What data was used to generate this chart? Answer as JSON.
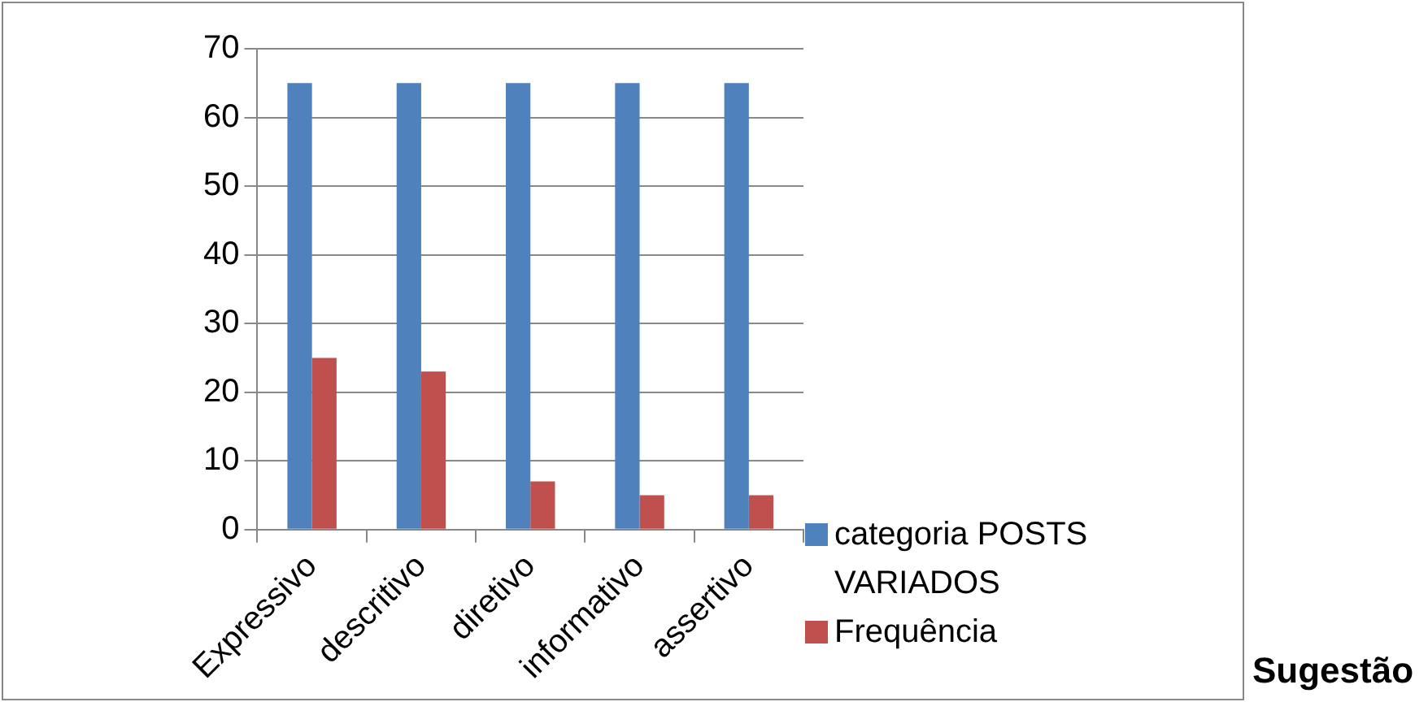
{
  "chart_data": {
    "type": "bar",
    "categories": [
      "Expressivo",
      "descritivo",
      "diretivo",
      "informativo",
      "assertivo"
    ],
    "series": [
      {
        "name": "categoria POSTS VARIADOS",
        "color": "#4f81bd",
        "values": [
          65,
          65,
          65,
          65,
          65
        ]
      },
      {
        "name": "Frequência",
        "color": "#c0504d",
        "values": [
          25,
          23,
          7,
          5,
          5
        ]
      }
    ],
    "ylim": [
      0,
      70
    ],
    "yticks": [
      0,
      10,
      20,
      30,
      40,
      50,
      60,
      70
    ],
    "grid": "y",
    "legend": "right",
    "annotations": [
      "Sugestão"
    ]
  }
}
